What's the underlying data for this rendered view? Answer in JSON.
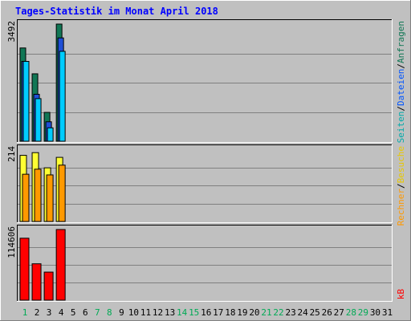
{
  "chart_data": {
    "type": "bar",
    "title": "Tages-Statistik im Monat April 2018",
    "x": [
      "1",
      "2",
      "3",
      "4",
      "5",
      "6",
      "7",
      "8",
      "9",
      "10",
      "11",
      "12",
      "13",
      "14",
      "15",
      "16",
      "17",
      "18",
      "19",
      "20",
      "21",
      "22",
      "23",
      "24",
      "25",
      "26",
      "27",
      "28",
      "29",
      "30",
      "31"
    ],
    "weekend_days": [
      "1",
      "7",
      "8",
      "14",
      "15",
      "21",
      "22",
      "28",
      "29"
    ],
    "panels": [
      {
        "ylabel_max": "3492",
        "ymax": 3492,
        "series": [
          {
            "name": "Anfragen",
            "values": [
              2780,
              2010,
              860,
              3492
            ],
            "color": "#117755"
          },
          {
            "name": "Dateien",
            "values": [
              2380,
              1400,
              580,
              3080
            ],
            "color": "#1f4fd6"
          },
          {
            "name": "Seiten",
            "values": [
              2380,
              1270,
              400,
              2680
            ],
            "color": "#00ccff"
          }
        ]
      },
      {
        "ylabel_max": "214",
        "ymax": 214,
        "series": [
          {
            "name": "Besuche",
            "values": [
              196,
              204,
              159,
              190
            ],
            "color": "#ffff33"
          },
          {
            "name": "Rechner",
            "values": [
              140,
              155,
              138,
              167
            ],
            "color": "#ff9900"
          }
        ]
      },
      {
        "ylabel_max": "114606",
        "ymax": 114606,
        "series": [
          {
            "name": "kB",
            "values": [
              100500,
              59000,
              45500,
              114606
            ],
            "color": "#ff0000"
          }
        ]
      }
    ],
    "legend": {
      "top": [
        "Seiten",
        "/",
        "Dateien",
        "/",
        "Anfragen"
      ],
      "top_colors": [
        "#00aaaa",
        "#000000",
        "#0055ff",
        "#000000",
        "#117755"
      ],
      "middle": [
        "Rechner",
        "/",
        "Besuche"
      ],
      "middle_colors": [
        "#ff9900",
        "#000000",
        "#e8c800"
      ],
      "bottom": [
        "kB"
      ],
      "bottom_colors": [
        "#ff0000"
      ]
    },
    "grid": true,
    "legend_position": "right-vertical"
  }
}
